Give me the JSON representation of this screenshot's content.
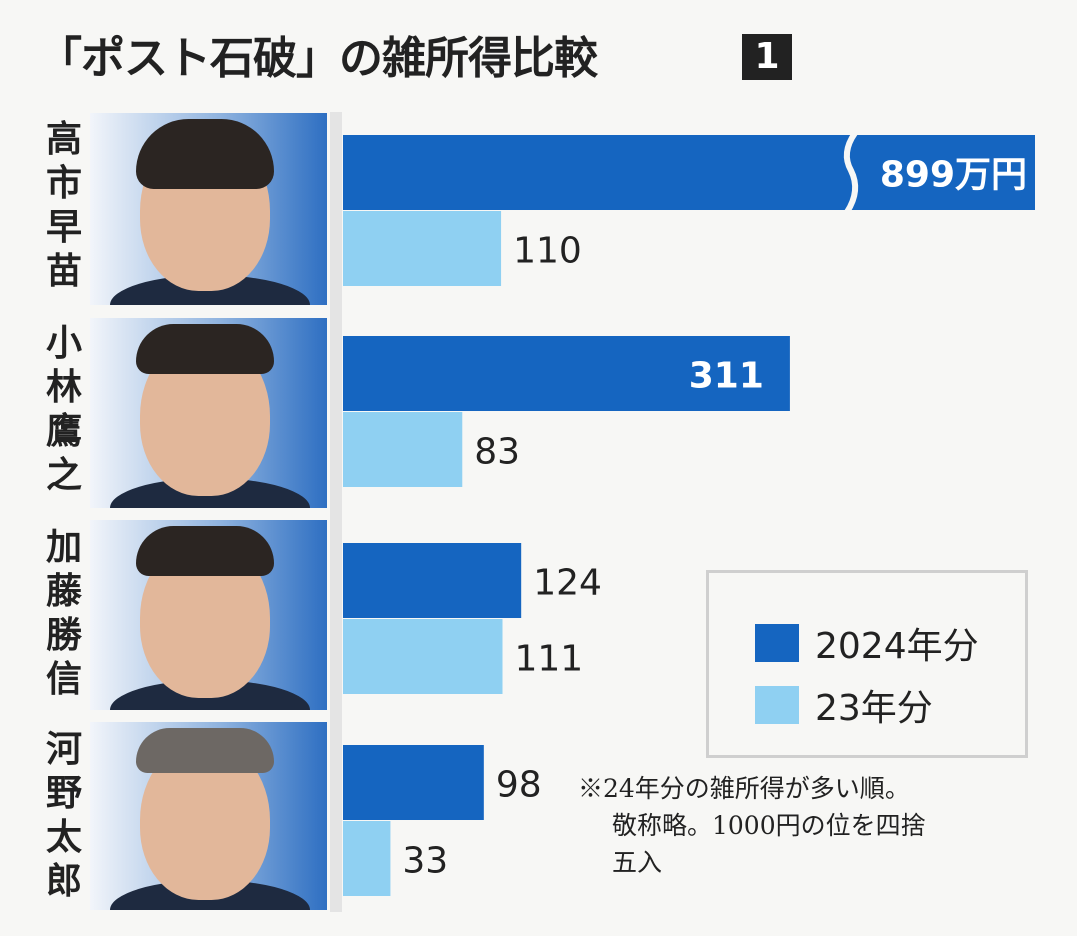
{
  "chart_data": {
    "type": "bar",
    "orientation": "horizontal",
    "title": "「ポスト石破」の雑所得比較",
    "badge": "1",
    "unit": "万円",
    "categories": [
      "高市早苗",
      "小林鷹之",
      "加藤勝信",
      "河野太郎"
    ],
    "series": [
      {
        "name": "2024年分",
        "color": "#1565c0",
        "values": [
          899,
          311,
          124,
          98
        ],
        "labels": [
          "899万円",
          "311",
          "124",
          "98"
        ]
      },
      {
        "name": "23年分",
        "color": "#8fd0f2",
        "values": [
          110,
          83,
          111,
          33
        ],
        "labels": [
          "110",
          "83",
          "111",
          "33"
        ]
      }
    ],
    "axis_break_over": 311,
    "legend": "right-lower",
    "note": [
      "※24年分の雑所得が多い順。",
      "敬称略。1000円の位を四捨",
      "五入"
    ]
  }
}
